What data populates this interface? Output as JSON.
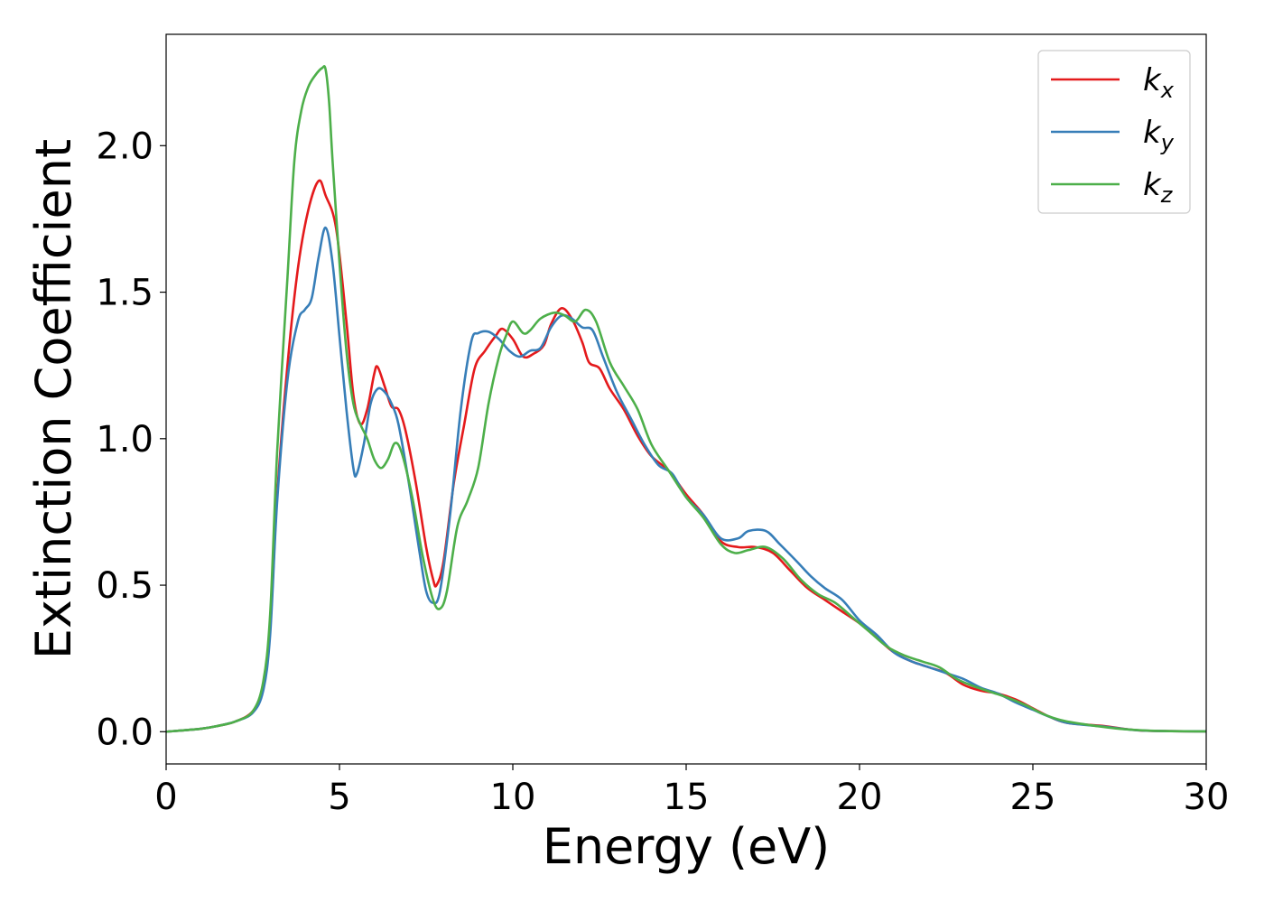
{
  "chart_data": {
    "type": "line",
    "title": "",
    "xlabel": "Energy (eV)",
    "ylabel": "Extinction Coefficient",
    "xlim": [
      0,
      30
    ],
    "ylim": [
      -0.11,
      2.38
    ],
    "xticks": [
      0,
      5,
      10,
      15,
      20,
      25,
      30
    ],
    "xtick_labels": [
      "0",
      "5",
      "10",
      "15",
      "20",
      "25",
      "30"
    ],
    "yticks": [
      0.0,
      0.5,
      1.0,
      1.5,
      2.0
    ],
    "ytick_labels": [
      "0.0",
      "0.5",
      "1.0",
      "1.5",
      "2.0"
    ],
    "grid": false,
    "legend_position": "top-right",
    "series": [
      {
        "name": "k",
        "subscript": "x",
        "color": "#e41a1c",
        "points": [
          [
            0,
            0
          ],
          [
            1,
            0.01
          ],
          [
            1.5,
            0.02
          ],
          [
            2,
            0.035
          ],
          [
            2.5,
            0.07
          ],
          [
            2.8,
            0.15
          ],
          [
            3.0,
            0.35
          ],
          [
            3.2,
            0.8
          ],
          [
            3.5,
            1.25
          ],
          [
            3.8,
            1.58
          ],
          [
            4.1,
            1.78
          ],
          [
            4.4,
            1.88
          ],
          [
            4.6,
            1.83
          ],
          [
            4.9,
            1.72
          ],
          [
            5.2,
            1.4
          ],
          [
            5.4,
            1.15
          ],
          [
            5.6,
            1.05
          ],
          [
            5.8,
            1.1
          ],
          [
            6.0,
            1.22
          ],
          [
            6.1,
            1.245
          ],
          [
            6.3,
            1.18
          ],
          [
            6.5,
            1.11
          ],
          [
            6.7,
            1.1
          ],
          [
            6.9,
            1.03
          ],
          [
            7.2,
            0.85
          ],
          [
            7.5,
            0.63
          ],
          [
            7.7,
            0.52
          ],
          [
            7.8,
            0.5
          ],
          [
            8.0,
            0.58
          ],
          [
            8.3,
            0.85
          ],
          [
            8.6,
            1.05
          ],
          [
            8.9,
            1.24
          ],
          [
            9.2,
            1.3
          ],
          [
            9.5,
            1.35
          ],
          [
            9.7,
            1.375
          ],
          [
            10.0,
            1.34
          ],
          [
            10.3,
            1.28
          ],
          [
            10.6,
            1.29
          ],
          [
            10.9,
            1.32
          ],
          [
            11.1,
            1.39
          ],
          [
            11.4,
            1.445
          ],
          [
            11.7,
            1.41
          ],
          [
            12.0,
            1.33
          ],
          [
            12.2,
            1.26
          ],
          [
            12.5,
            1.24
          ],
          [
            12.8,
            1.17
          ],
          [
            13.2,
            1.1
          ],
          [
            13.6,
            1.01
          ],
          [
            14.0,
            0.94
          ],
          [
            14.5,
            0.89
          ],
          [
            15.0,
            0.81
          ],
          [
            15.5,
            0.74
          ],
          [
            16.0,
            0.65
          ],
          [
            16.5,
            0.63
          ],
          [
            17.0,
            0.63
          ],
          [
            17.5,
            0.61
          ],
          [
            18.0,
            0.55
          ],
          [
            18.5,
            0.49
          ],
          [
            19.0,
            0.45
          ],
          [
            19.5,
            0.41
          ],
          [
            20.0,
            0.37
          ],
          [
            20.5,
            0.32
          ],
          [
            21.0,
            0.27
          ],
          [
            21.5,
            0.24
          ],
          [
            22.0,
            0.22
          ],
          [
            22.5,
            0.2
          ],
          [
            23.0,
            0.16
          ],
          [
            23.5,
            0.14
          ],
          [
            24.0,
            0.13
          ],
          [
            24.5,
            0.11
          ],
          [
            25.0,
            0.08
          ],
          [
            25.5,
            0.05
          ],
          [
            26.0,
            0.03
          ],
          [
            27.0,
            0.02
          ],
          [
            28.0,
            0.005
          ],
          [
            29.0,
            0.002
          ],
          [
            30.0,
            0.001
          ]
        ]
      },
      {
        "name": "k",
        "subscript": "y",
        "color": "#377eb8",
        "points": [
          [
            0,
            0
          ],
          [
            1,
            0.01
          ],
          [
            1.5,
            0.02
          ],
          [
            2,
            0.035
          ],
          [
            2.5,
            0.065
          ],
          [
            2.8,
            0.14
          ],
          [
            3.0,
            0.33
          ],
          [
            3.2,
            0.78
          ],
          [
            3.5,
            1.2
          ],
          [
            3.8,
            1.4
          ],
          [
            4.0,
            1.44
          ],
          [
            4.2,
            1.48
          ],
          [
            4.4,
            1.62
          ],
          [
            4.6,
            1.72
          ],
          [
            4.8,
            1.6
          ],
          [
            5.0,
            1.35
          ],
          [
            5.2,
            1.1
          ],
          [
            5.4,
            0.9
          ],
          [
            5.5,
            0.88
          ],
          [
            5.7,
            0.98
          ],
          [
            5.9,
            1.12
          ],
          [
            6.1,
            1.17
          ],
          [
            6.3,
            1.16
          ],
          [
            6.5,
            1.12
          ],
          [
            6.7,
            1.05
          ],
          [
            7.0,
            0.85
          ],
          [
            7.3,
            0.62
          ],
          [
            7.5,
            0.48
          ],
          [
            7.7,
            0.44
          ],
          [
            7.9,
            0.48
          ],
          [
            8.2,
            0.75
          ],
          [
            8.5,
            1.1
          ],
          [
            8.8,
            1.33
          ],
          [
            9.0,
            1.36
          ],
          [
            9.3,
            1.365
          ],
          [
            9.6,
            1.34
          ],
          [
            9.9,
            1.3
          ],
          [
            10.2,
            1.28
          ],
          [
            10.5,
            1.3
          ],
          [
            10.8,
            1.31
          ],
          [
            11.1,
            1.38
          ],
          [
            11.4,
            1.42
          ],
          [
            11.7,
            1.41
          ],
          [
            12.0,
            1.38
          ],
          [
            12.3,
            1.37
          ],
          [
            12.6,
            1.28
          ],
          [
            13.0,
            1.16
          ],
          [
            13.4,
            1.07
          ],
          [
            13.8,
            0.98
          ],
          [
            14.2,
            0.91
          ],
          [
            14.6,
            0.88
          ],
          [
            15.0,
            0.8
          ],
          [
            15.5,
            0.74
          ],
          [
            16.0,
            0.66
          ],
          [
            16.5,
            0.66
          ],
          [
            16.8,
            0.685
          ],
          [
            17.3,
            0.685
          ],
          [
            17.7,
            0.64
          ],
          [
            18.2,
            0.58
          ],
          [
            18.6,
            0.53
          ],
          [
            19.0,
            0.49
          ],
          [
            19.5,
            0.45
          ],
          [
            20.0,
            0.38
          ],
          [
            20.5,
            0.33
          ],
          [
            21.0,
            0.27
          ],
          [
            21.5,
            0.24
          ],
          [
            22.0,
            0.22
          ],
          [
            22.5,
            0.2
          ],
          [
            23.0,
            0.18
          ],
          [
            23.5,
            0.15
          ],
          [
            24.0,
            0.13
          ],
          [
            24.5,
            0.1
          ],
          [
            25.0,
            0.075
          ],
          [
            25.5,
            0.05
          ],
          [
            26.0,
            0.03
          ],
          [
            27.0,
            0.018
          ],
          [
            28.0,
            0.005
          ],
          [
            29.0,
            0.002
          ],
          [
            30.0,
            0.001
          ]
        ]
      },
      {
        "name": "k",
        "subscript": "z",
        "color": "#4daf4a",
        "points": [
          [
            0,
            0
          ],
          [
            1,
            0.01
          ],
          [
            1.5,
            0.02
          ],
          [
            2,
            0.035
          ],
          [
            2.5,
            0.07
          ],
          [
            2.8,
            0.17
          ],
          [
            3.0,
            0.4
          ],
          [
            3.2,
            0.95
          ],
          [
            3.5,
            1.55
          ],
          [
            3.7,
            1.95
          ],
          [
            3.9,
            2.12
          ],
          [
            4.1,
            2.2
          ],
          [
            4.3,
            2.24
          ],
          [
            4.5,
            2.265
          ],
          [
            4.6,
            2.26
          ],
          [
            4.7,
            2.15
          ],
          [
            4.8,
            1.95
          ],
          [
            5.0,
            1.6
          ],
          [
            5.2,
            1.3
          ],
          [
            5.4,
            1.12
          ],
          [
            5.6,
            1.05
          ],
          [
            5.8,
            1.0
          ],
          [
            6.0,
            0.93
          ],
          [
            6.2,
            0.9
          ],
          [
            6.4,
            0.93
          ],
          [
            6.6,
            0.985
          ],
          [
            6.8,
            0.95
          ],
          [
            7.1,
            0.8
          ],
          [
            7.4,
            0.6
          ],
          [
            7.7,
            0.45
          ],
          [
            7.9,
            0.42
          ],
          [
            8.1,
            0.48
          ],
          [
            8.4,
            0.7
          ],
          [
            8.7,
            0.79
          ],
          [
            9.0,
            0.9
          ],
          [
            9.3,
            1.12
          ],
          [
            9.6,
            1.28
          ],
          [
            9.8,
            1.35
          ],
          [
            10.0,
            1.4
          ],
          [
            10.3,
            1.36
          ],
          [
            10.5,
            1.37
          ],
          [
            10.8,
            1.41
          ],
          [
            11.2,
            1.43
          ],
          [
            11.5,
            1.42
          ],
          [
            11.8,
            1.4
          ],
          [
            12.1,
            1.44
          ],
          [
            12.4,
            1.4
          ],
          [
            12.8,
            1.26
          ],
          [
            13.2,
            1.18
          ],
          [
            13.6,
            1.1
          ],
          [
            14.0,
            0.98
          ],
          [
            14.5,
            0.89
          ],
          [
            15.0,
            0.8
          ],
          [
            15.5,
            0.73
          ],
          [
            16.0,
            0.64
          ],
          [
            16.4,
            0.61
          ],
          [
            16.8,
            0.62
          ],
          [
            17.3,
            0.63
          ],
          [
            17.8,
            0.59
          ],
          [
            18.3,
            0.52
          ],
          [
            18.8,
            0.47
          ],
          [
            19.3,
            0.44
          ],
          [
            19.8,
            0.39
          ],
          [
            20.3,
            0.34
          ],
          [
            20.8,
            0.29
          ],
          [
            21.3,
            0.26
          ],
          [
            21.8,
            0.24
          ],
          [
            22.3,
            0.22
          ],
          [
            22.8,
            0.18
          ],
          [
            23.3,
            0.155
          ],
          [
            23.8,
            0.135
          ],
          [
            24.3,
            0.115
          ],
          [
            24.8,
            0.09
          ],
          [
            25.3,
            0.06
          ],
          [
            25.8,
            0.04
          ],
          [
            26.5,
            0.025
          ],
          [
            27.5,
            0.01
          ],
          [
            28.5,
            0.003
          ],
          [
            30.0,
            0.001
          ]
        ]
      }
    ]
  }
}
